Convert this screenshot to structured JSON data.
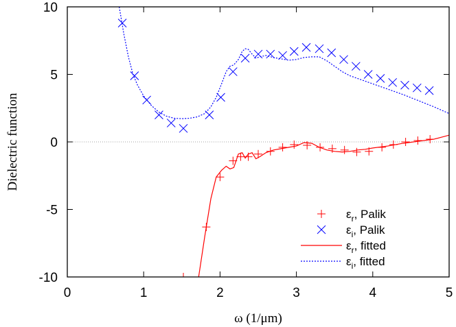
{
  "chart_data": {
    "type": "line",
    "title": "",
    "xlabel": "ω (1/μm)",
    "ylabel": "Dielectric function",
    "xlim": [
      0,
      5
    ],
    "ylim": [
      -10,
      10
    ],
    "x_ticks": [
      "0",
      "1",
      "2",
      "3",
      "4",
      "5"
    ],
    "y_ticks": [
      "-10",
      "-5",
      "0",
      "5",
      "10"
    ],
    "zero_line": true,
    "legend_position": "bottom-right",
    "colors": {
      "red": "#ff0000",
      "blue": "#0000ff",
      "zero": "#a0a0a0"
    },
    "series": [
      {
        "label_main": "ε",
        "label_sub": "r",
        "label_rest": ", Palik",
        "style": "marker-plus",
        "color": "#ff0000",
        "x": [
          1.52,
          1.82,
          2.0,
          2.17,
          2.27,
          2.37,
          2.5,
          2.66,
          2.82,
          2.97,
          3.14,
          3.31,
          3.47,
          3.63,
          3.79,
          3.95,
          4.12,
          4.27,
          4.43,
          4.59,
          4.75
        ],
        "y": [
          -10.0,
          -6.3,
          -2.6,
          -1.4,
          -1.1,
          -1.1,
          -0.9,
          -0.7,
          -0.4,
          -0.2,
          -0.25,
          -0.4,
          -0.5,
          -0.6,
          -0.75,
          -0.7,
          -0.4,
          -0.2,
          0.0,
          0.1,
          0.2
        ]
      },
      {
        "label_main": "ε",
        "label_sub": "i",
        "label_rest": ", Palik",
        "style": "marker-x",
        "color": "#0000ff",
        "x": [
          0.72,
          0.88,
          1.04,
          1.2,
          1.36,
          1.52,
          1.86,
          2.01,
          2.17,
          2.33,
          2.5,
          2.66,
          2.82,
          2.97,
          3.13,
          3.3,
          3.46,
          3.62,
          3.78,
          3.94,
          4.1,
          4.26,
          4.42,
          4.58,
          4.74
        ],
        "y": [
          8.8,
          4.9,
          3.1,
          2.0,
          1.4,
          1.0,
          2.0,
          3.3,
          5.2,
          6.2,
          6.5,
          6.5,
          6.4,
          6.7,
          7.0,
          6.9,
          6.6,
          6.1,
          5.6,
          5.0,
          4.7,
          4.4,
          4.2,
          4.0,
          3.8
        ]
      },
      {
        "label_main": "ε",
        "label_sub": "r",
        "label_rest": ", fitted",
        "style": "solid",
        "color": "#ff0000",
        "x": [
          1.72,
          1.8,
          1.88,
          1.95,
          2.02,
          2.08,
          2.13,
          2.18,
          2.24,
          2.29,
          2.33,
          2.37,
          2.42,
          2.47,
          2.52,
          2.6,
          2.7,
          2.8,
          2.9,
          3.0,
          3.1,
          3.2,
          3.3,
          3.4,
          3.5,
          3.6,
          3.7,
          3.8,
          3.9,
          4.0,
          4.2,
          4.4,
          4.6,
          4.8,
          5.0
        ],
        "y": [
          -10.0,
          -7.0,
          -4.2,
          -2.6,
          -2.1,
          -1.8,
          -2.0,
          -1.9,
          -0.9,
          -0.8,
          -1.2,
          -0.9,
          -0.8,
          -1.25,
          -1.1,
          -0.8,
          -0.6,
          -0.5,
          -0.4,
          -0.3,
          -0.05,
          -0.1,
          -0.4,
          -0.6,
          -0.7,
          -0.75,
          -0.7,
          -0.6,
          -0.55,
          -0.45,
          -0.3,
          -0.1,
          0.05,
          0.2,
          0.5
        ]
      },
      {
        "label_main": "ε",
        "label_sub": "i",
        "label_rest": ", fitted",
        "style": "dotted",
        "color": "#0000ff",
        "x": [
          0.68,
          0.74,
          0.8,
          0.86,
          0.92,
          1.0,
          1.1,
          1.2,
          1.3,
          1.4,
          1.5,
          1.6,
          1.7,
          1.8,
          1.88,
          1.95,
          2.02,
          2.08,
          2.13,
          2.18,
          2.24,
          2.29,
          2.33,
          2.37,
          2.42,
          2.47,
          2.52,
          2.6,
          2.7,
          2.8,
          2.9,
          3.0,
          3.1,
          3.2,
          3.3,
          3.4,
          3.5,
          3.6,
          3.7,
          3.8,
          3.9,
          4.0,
          4.2,
          4.4,
          4.6,
          4.8,
          5.0
        ],
        "y": [
          10.0,
          8.0,
          6.3,
          5.0,
          4.2,
          3.4,
          2.7,
          2.2,
          1.9,
          1.75,
          1.72,
          1.75,
          1.85,
          2.1,
          2.6,
          3.3,
          4.3,
          5.2,
          5.6,
          5.7,
          6.1,
          6.7,
          6.9,
          6.85,
          6.5,
          6.2,
          6.3,
          6.4,
          6.25,
          6.15,
          6.05,
          6.1,
          6.25,
          6.3,
          6.3,
          6.0,
          5.6,
          5.2,
          4.9,
          4.7,
          4.5,
          4.3,
          3.9,
          3.5,
          3.05,
          2.6,
          2.1
        ]
      }
    ]
  }
}
